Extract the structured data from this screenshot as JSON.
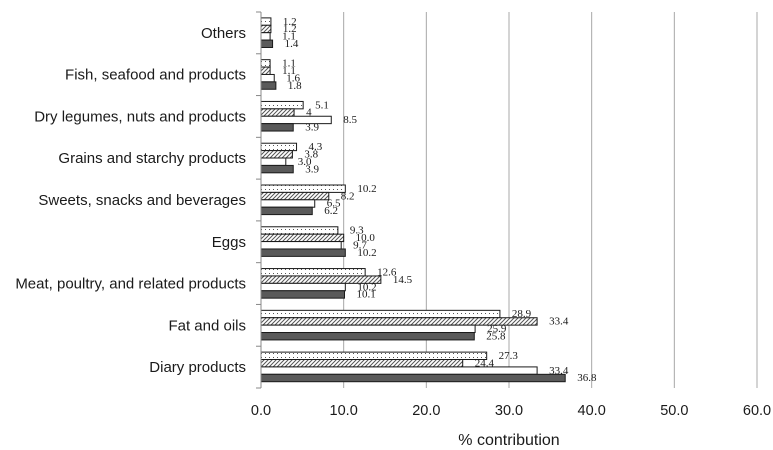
{
  "chart_data": {
    "type": "bar",
    "orientation": "horizontal",
    "categories": [
      "Diary products",
      "Fat and oils",
      "Meat, poultry, and related products",
      "Eggs",
      "Sweets, snacks and beverages",
      "Grains and starchy products",
      "Dry legumes, nuts and products",
      "Fish, seafood and products",
      "Others"
    ],
    "series": [
      {
        "values": [
          27.3,
          28.9,
          12.6,
          9.3,
          10.2,
          4.3,
          5.1,
          1.1,
          1.2
        ],
        "fill": "dots",
        "color": "#ffffff"
      },
      {
        "values": [
          24.4,
          33.4,
          14.5,
          10.0,
          8.2,
          3.8,
          4.0,
          1.1,
          1.2
        ],
        "fill": "hatch",
        "color": "#c8c8c8"
      },
      {
        "values": [
          33.4,
          25.9,
          10.2,
          9.7,
          6.5,
          3.0,
          8.5,
          1.6,
          1.1
        ],
        "fill": "solid",
        "color": "#ffffff"
      },
      {
        "values": [
          36.8,
          25.8,
          10.1,
          10.2,
          6.2,
          3.9,
          3.9,
          1.8,
          1.4
        ],
        "fill": "solid",
        "color": "#5a5a5a"
      }
    ],
    "data_labels": [
      [
        "27.3",
        "28.9",
        "12.6",
        "9.3",
        "10.2",
        "4.3",
        "5.1",
        "1.1",
        "1.2"
      ],
      [
        "24.4",
        "33.4",
        "14.5",
        "10.0",
        "8.2",
        "3.8",
        "4",
        "1.1",
        "1.2"
      ],
      [
        "33.4",
        "25.9",
        "10.2",
        "9.7",
        "6.5",
        "3.0",
        "8.5",
        "1.6",
        "1.1"
      ],
      [
        "36.8",
        "25.8",
        "10.1",
        "10.2",
        "6.2",
        "3.9",
        "3.9",
        "1.8",
        "1.4"
      ]
    ],
    "xlim": [
      0,
      60
    ],
    "xticks": [
      "0.0",
      "10.0",
      "20.0",
      "30.0",
      "40.0",
      "50.0",
      "60.0"
    ],
    "xlabel": "% contribution",
    "ylabel": "",
    "title": "",
    "grid": "vertical",
    "legend": "none"
  }
}
